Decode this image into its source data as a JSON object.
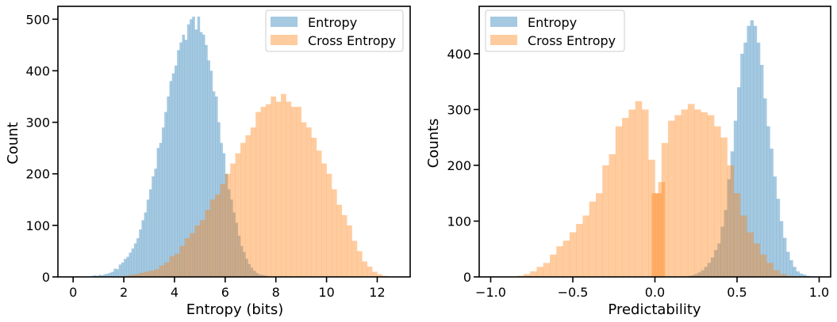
{
  "colors": {
    "entropy": "#1f77b4",
    "cross_entropy": "#ff7f0e",
    "bar_alpha": 0.4
  },
  "chart_data": [
    {
      "type": "histogram",
      "xlabel": "Entropy (bits)",
      "ylabel": "Count",
      "xlim": [
        -0.6,
        13.3
      ],
      "ylim": [
        0,
        525
      ],
      "xticks": [
        0,
        2,
        4,
        6,
        8,
        10,
        12
      ],
      "yticks": [
        0,
        100,
        200,
        300,
        400,
        500
      ],
      "legend": {
        "position": "top-right",
        "entries": [
          "Entropy",
          "Cross Entropy"
        ]
      },
      "series": [
        {
          "name": "Entropy",
          "color": "#1f77b4",
          "bin_width": 0.1,
          "x": [
            0.7,
            0.8,
            0.9,
            1.0,
            1.1,
            1.2,
            1.3,
            1.4,
            1.5,
            1.6,
            1.7,
            1.8,
            1.9,
            2.0,
            2.1,
            2.2,
            2.3,
            2.4,
            2.5,
            2.6,
            2.7,
            2.8,
            2.9,
            3.0,
            3.1,
            3.2,
            3.3,
            3.4,
            3.5,
            3.6,
            3.7,
            3.8,
            3.9,
            4.0,
            4.1,
            4.2,
            4.3,
            4.4,
            4.5,
            4.6,
            4.7,
            4.8,
            4.9,
            5.0,
            5.1,
            5.2,
            5.3,
            5.4,
            5.5,
            5.6,
            5.7,
            5.8,
            5.9,
            6.0,
            6.1,
            6.2,
            6.3,
            6.4,
            6.5,
            6.6,
            6.7,
            6.8,
            6.9,
            7.0,
            7.1,
            7.2,
            7.3,
            7.4,
            7.5,
            7.6,
            7.7,
            7.8
          ],
          "values": [
            2,
            3,
            2,
            4,
            3,
            5,
            6,
            8,
            10,
            16,
            15,
            24,
            28,
            35,
            39,
            47,
            55,
            65,
            75,
            92,
            110,
            125,
            150,
            170,
            195,
            210,
            250,
            260,
            290,
            320,
            350,
            380,
            395,
            410,
            440,
            455,
            470,
            460,
            490,
            500,
            505,
            480,
            505,
            475,
            470,
            450,
            420,
            400,
            360,
            350,
            300,
            260,
            240,
            200,
            170,
            150,
            125,
            105,
            80,
            60,
            48,
            35,
            25,
            18,
            12,
            8,
            5,
            4,
            3,
            2,
            1,
            1
          ]
        },
        {
          "name": "Cross Entropy",
          "color": "#ff7f0e",
          "bin_width": 0.1,
          "x": [
            2.0,
            2.2,
            2.4,
            2.6,
            2.8,
            3.0,
            3.2,
            3.4,
            3.6,
            3.8,
            4.0,
            4.2,
            4.4,
            4.6,
            4.8,
            5.0,
            5.2,
            5.4,
            5.6,
            5.8,
            6.0,
            6.2,
            6.4,
            6.6,
            6.8,
            7.0,
            7.2,
            7.4,
            7.6,
            7.8,
            8.0,
            8.2,
            8.4,
            8.6,
            8.8,
            9.0,
            9.2,
            9.4,
            9.6,
            9.8,
            10.0,
            10.2,
            10.4,
            10.6,
            10.8,
            11.0,
            11.2,
            11.4,
            11.6,
            11.8,
            12.0,
            12.2
          ],
          "values": [
            2,
            4,
            5,
            8,
            10,
            12,
            15,
            22,
            28,
            40,
            45,
            60,
            75,
            85,
            100,
            110,
            130,
            150,
            160,
            180,
            200,
            220,
            240,
            260,
            275,
            290,
            320,
            330,
            335,
            350,
            340,
            355,
            340,
            330,
            330,
            300,
            290,
            270,
            245,
            220,
            200,
            170,
            140,
            120,
            100,
            70,
            50,
            30,
            20,
            10,
            5,
            2
          ]
        }
      ]
    },
    {
      "type": "histogram",
      "xlabel": "Predictability",
      "ylabel": "Counts",
      "xlim": [
        -1.07,
        1.07
      ],
      "ylim": [
        0,
        485
      ],
      "xticks": [
        -1.0,
        -0.5,
        0.0,
        0.5,
        1.0
      ],
      "xtick_labels": [
        "−1.0",
        "−0.5",
        "0.0",
        "0.5",
        "1.0"
      ],
      "yticks": [
        0,
        100,
        200,
        300,
        400
      ],
      "legend": {
        "position": "top-left",
        "entries": [
          "Entropy",
          "Cross Entropy"
        ]
      },
      "series": [
        {
          "name": "Entropy",
          "color": "#1f77b4",
          "bin_width": 0.01,
          "x": [
            0.18,
            0.2,
            0.22,
            0.24,
            0.26,
            0.28,
            0.3,
            0.32,
            0.34,
            0.36,
            0.38,
            0.4,
            0.42,
            0.44,
            0.46,
            0.48,
            0.5,
            0.52,
            0.54,
            0.56,
            0.58,
            0.6,
            0.62,
            0.64,
            0.66,
            0.68,
            0.7,
            0.72,
            0.74,
            0.76,
            0.78,
            0.8,
            0.82,
            0.84,
            0.86,
            0.88,
            0.9,
            0.92,
            0.94,
            0.96
          ],
          "values": [
            1,
            2,
            3,
            5,
            8,
            12,
            18,
            25,
            35,
            48,
            60,
            90,
            120,
            175,
            225,
            280,
            340,
            400,
            420,
            450,
            460,
            450,
            420,
            380,
            320,
            270,
            230,
            180,
            140,
            100,
            70,
            45,
            30,
            18,
            10,
            6,
            4,
            2,
            1,
            1
          ]
        },
        {
          "name": "Cross Entropy",
          "color": "#ff7f0e",
          "bin_width": 0.01,
          "x": [
            -0.84,
            -0.8,
            -0.76,
            -0.72,
            -0.68,
            -0.64,
            -0.6,
            -0.56,
            -0.52,
            -0.48,
            -0.44,
            -0.4,
            -0.36,
            -0.32,
            -0.28,
            -0.24,
            -0.2,
            -0.16,
            -0.12,
            -0.08,
            -0.04,
            -0.02,
            0.0,
            0.02,
            0.04,
            0.08,
            0.12,
            0.16,
            0.2,
            0.24,
            0.28,
            0.32,
            0.36,
            0.4,
            0.44,
            0.48,
            0.52,
            0.56,
            0.6,
            0.64,
            0.68,
            0.72,
            0.76,
            0.8
          ],
          "values": [
            2,
            5,
            10,
            18,
            25,
            40,
            55,
            65,
            80,
            95,
            110,
            135,
            150,
            200,
            220,
            270,
            285,
            300,
            315,
            300,
            210,
            150,
            150,
            170,
            240,
            280,
            290,
            300,
            310,
            300,
            295,
            290,
            270,
            250,
            200,
            150,
            110,
            80,
            60,
            40,
            25,
            12,
            5,
            2
          ]
        }
      ]
    }
  ]
}
